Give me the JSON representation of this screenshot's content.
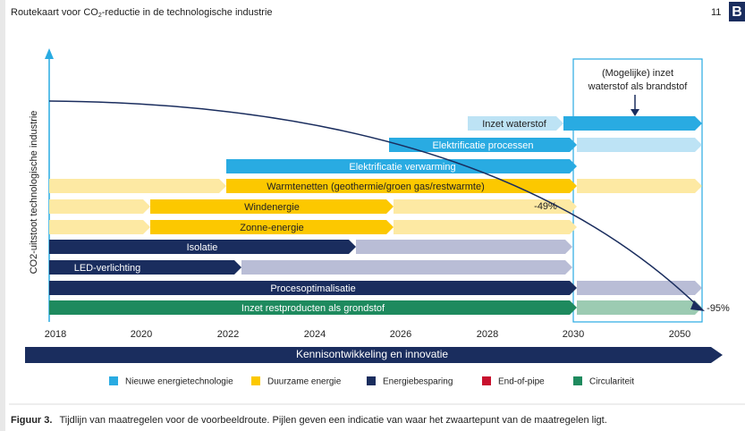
{
  "header": {
    "title_parts": [
      "Routekaart voor CO",
      "2",
      "-reductie in de technologische industrie"
    ],
    "page": "11",
    "logo": "B"
  },
  "y_axis_label": "CO2-uitstoot technologische industrie",
  "callout": [
    "(Mogelijke) inzet",
    "waterstof als brandstof"
  ],
  "bars": [
    {
      "label": "Inzet waterstof",
      "category": "Nieuwe energietechnologie"
    },
    {
      "label": "Elektrificatie processen",
      "category": "Nieuwe energietechnologie"
    },
    {
      "label": "Elektrificatie verwarming",
      "category": "Nieuwe energietechnologie"
    },
    {
      "label": "Warmtenetten (geothermie/groen gas/restwarmte)",
      "category": "Duurzame energie"
    },
    {
      "label": "Windenergie",
      "category": "Duurzame energie"
    },
    {
      "label": "Zonne-energie",
      "category": "Duurzame energie"
    },
    {
      "label": "Isolatie",
      "category": "Energiebesparing"
    },
    {
      "label": "LED-verlichting",
      "category": "Energiebesparing"
    },
    {
      "label": "Procesoptimalisatie",
      "category": "Energiebesparing"
    },
    {
      "label": "Inzet restproducten als grondstof",
      "category": "Circulariteit"
    }
  ],
  "annotations": [
    "-49%",
    "-95%"
  ],
  "years": [
    "2018",
    "2020",
    "2022",
    "2024",
    "2026",
    "2028",
    "2030",
    "2050"
  ],
  "banner": "Kennisontwikkeling en innovatie",
  "legend": [
    {
      "name": "Nieuwe energietechnologie",
      "color": "#29abe2"
    },
    {
      "name": "Duurzame energie",
      "color": "#fcc800"
    },
    {
      "name": "Energiebesparing",
      "color": "#1a2d5e"
    },
    {
      "name": "End-of-pipe",
      "color": "#c8102e"
    },
    {
      "name": "Circulariteit",
      "color": "#1e8a5e"
    }
  ],
  "caption": {
    "label": "Figuur 3.",
    "text": "Tijdlijn van maatregelen voor de voorbeeldroute. Pijlen geven een indicatie van waar het zwaartepunt van de maatregelen ligt."
  }
}
